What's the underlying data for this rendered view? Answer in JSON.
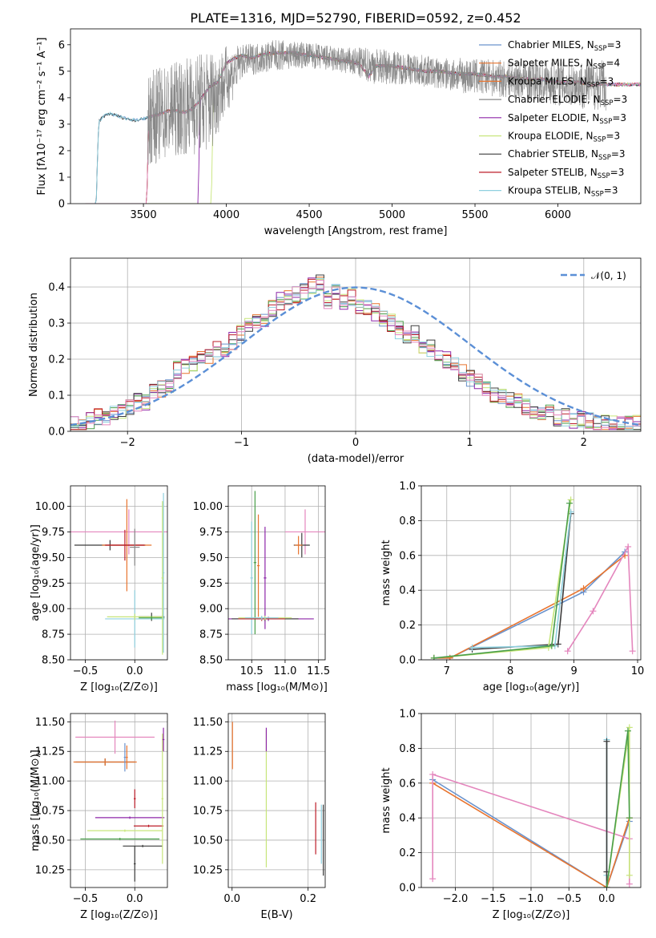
{
  "figure": {
    "title": "PLATE=1316, MJD=52790, FIBERID=0592, z=0.452"
  },
  "model_colors": [
    "#6a92cc",
    "#e8742f",
    "#4a9e4a",
    "#8d27a8",
    "#c7e57a",
    "#3c3c3c",
    "#bd1c28",
    "#8fd0df",
    "#e486bd",
    "#888888"
  ],
  "chart_data": [
    {
      "id": "spectrum",
      "type": "line",
      "title": "PLATE=1316, MJD=52790, FIBERID=0592, z=0.452",
      "xlabel": "wavelength [Angstrom, rest frame]",
      "ylabel": "Flux [fλ10⁻¹⁷ erg cm⁻² s⁻¹ A⁻¹]",
      "xlim": [
        3060,
        6500
      ],
      "ylim": [
        0,
        6.6
      ],
      "xticks": [
        3500,
        4000,
        4500,
        5000,
        5500,
        6000
      ],
      "yticks": [
        0,
        1,
        2,
        3,
        4,
        5,
        6
      ],
      "grid": false,
      "legend_position": "top-right",
      "observed_spectrum": {
        "color": "#888888",
        "x_start": 3525,
        "x_end": 6290,
        "envelope_x": [
          3525,
          3700,
          3900,
          4100,
          4300,
          4500,
          4700,
          4900,
          5100,
          5300,
          5500,
          5700,
          5900,
          6100,
          6290
        ],
        "envelope_y": [
          3.2,
          3.6,
          3.9,
          5.4,
          5.6,
          5.6,
          5.4,
          5.2,
          5.1,
          4.9,
          4.8,
          4.7,
          4.6,
          4.5,
          4.5
        ],
        "noise_amplitude": [
          1.8,
          1.8,
          2.0,
          0.6,
          0.6,
          0.5,
          0.5,
          0.7,
          0.6,
          0.6,
          0.7,
          0.7,
          0.8,
          0.9,
          1.0
        ]
      },
      "model_spectrum": {
        "x": [
          3200,
          3215,
          3230,
          3260,
          3300,
          3350,
          3400,
          3450,
          3500,
          3550,
          3600,
          3650,
          3700,
          3750,
          3800,
          3850,
          3900,
          3950,
          4000,
          4050,
          4100,
          4150,
          4200,
          4300,
          4400,
          4500,
          4600,
          4700,
          4800,
          4860,
          4900,
          5000,
          5100,
          5200,
          5300,
          5400,
          5500,
          5600,
          5700,
          5800,
          5900,
          6000,
          6100,
          6200,
          6300
        ],
        "y": [
          0,
          0,
          3.1,
          3.3,
          3.4,
          3.3,
          3.2,
          3.15,
          3.2,
          3.3,
          3.4,
          3.5,
          3.5,
          3.45,
          3.6,
          4.0,
          4.4,
          4.6,
          5.3,
          5.5,
          5.6,
          5.5,
          5.6,
          5.7,
          5.7,
          5.6,
          5.5,
          5.4,
          5.3,
          4.8,
          5.2,
          5.2,
          5.1,
          5.0,
          5.0,
          4.9,
          4.9,
          4.8,
          4.8,
          4.7,
          4.7,
          4.6,
          4.6,
          4.5,
          4.5
        ]
      },
      "model_start_wavelengths": [
        3200,
        3520,
        3520,
        3830,
        3910,
        3200,
        3520,
        3200,
        3520,
        3200
      ],
      "legend": [
        {
          "label": "Chabrier MILES, N",
          "sub": "SSP",
          "suffix": "=3",
          "color": "#6a92cc"
        },
        {
          "label": "Salpeter MILES, N",
          "sub": "SSP",
          "suffix": "=4",
          "color": "#e8742f"
        },
        {
          "label": "Kroupa MILES, N",
          "sub": "SSP",
          "suffix": "=3",
          "color": "#e8742f"
        },
        {
          "label": "Chabrier ELODIE, N",
          "sub": "SSP",
          "suffix": "=3",
          "color": "#888888"
        },
        {
          "label": "Salpeter ELODIE, N",
          "sub": "SSP",
          "suffix": "=3",
          "color": "#8d27a8"
        },
        {
          "label": "Kroupa ELODIE, N",
          "sub": "SSP",
          "suffix": "=3",
          "color": "#c7e57a"
        },
        {
          "label": "Chabrier STELIB, N",
          "sub": "SSP",
          "suffix": "=3",
          "color": "#3c3c3c"
        },
        {
          "label": "Salpeter STELIB, N",
          "sub": "SSP",
          "suffix": "=3",
          "color": "#bd1c28"
        },
        {
          "label": "Kroupa STELIB, N",
          "sub": "SSP",
          "suffix": "=3",
          "color": "#8fd0df"
        }
      ]
    },
    {
      "id": "residuals",
      "type": "line",
      "xlabel": "(data-model)/error",
      "ylabel": "Normed distribution",
      "xlim": [
        -2.5,
        2.5
      ],
      "ylim": [
        0,
        0.48
      ],
      "xticks": [
        -2,
        -1,
        0,
        1,
        2
      ],
      "yticks": [
        0.0,
        0.1,
        0.2,
        0.3,
        0.4
      ],
      "grid": true,
      "legend_position": "top-right",
      "gaussian_label": "𝒩(0, 1)",
      "gaussian_color": "#5b8fd6",
      "bin_width": 0.1,
      "bin_start": -2.5,
      "histogram": [
        0.02,
        0.02,
        0.03,
        0.04,
        0.04,
        0.05,
        0.06,
        0.07,
        0.08,
        0.08,
        0.11,
        0.12,
        0.13,
        0.17,
        0.18,
        0.19,
        0.2,
        0.21,
        0.23,
        0.22,
        0.25,
        0.27,
        0.29,
        0.31,
        0.31,
        0.34,
        0.36,
        0.37,
        0.38,
        0.39,
        0.4,
        0.41,
        0.36,
        0.39,
        0.36,
        0.37,
        0.35,
        0.34,
        0.33,
        0.31,
        0.3,
        0.28,
        0.27,
        0.27,
        0.24,
        0.23,
        0.21,
        0.2,
        0.18,
        0.16,
        0.15,
        0.14,
        0.12,
        0.1,
        0.1,
        0.09,
        0.08,
        0.07,
        0.06,
        0.05,
        0.05,
        0.04,
        0.04,
        0.03,
        0.03,
        0.03,
        0.02,
        0.02,
        0.02,
        0.02,
        0.02,
        0.02
      ]
    },
    {
      "id": "age-vs-metallicity",
      "type": "scatter",
      "xlabel": "Z [log₁₀(Z/Z⊙)]",
      "ylabel": "age  [log₁₀(age/yr)]",
      "xlim": [
        -0.65,
        0.33
      ],
      "ylim": [
        8.5,
        10.2
      ],
      "xticks": [
        -0.5,
        0.0
      ],
      "yticks": [
        8.5,
        8.75,
        9.0,
        9.25,
        9.5,
        9.75,
        10.0
      ],
      "grid": true,
      "errorbars": [
        {
          "x": -0.06,
          "y": 9.75,
          "xerr": 0.6,
          "yerr": 0.22,
          "color": "#e486bd"
        },
        {
          "x": -0.25,
          "y": 9.62,
          "xerr": 0.36,
          "yerr": 0.05,
          "color": "#3c3c3c"
        },
        {
          "x": -0.08,
          "y": 9.62,
          "xerr": 0.25,
          "yerr": 0.45,
          "color": "#e8742f"
        },
        {
          "x": -0.1,
          "y": 9.62,
          "xerr": 0.2,
          "yerr": 0.15,
          "color": "#bd1c28"
        },
        {
          "x": 0.0,
          "y": 9.6,
          "xerr": 0.05,
          "yerr": 0.18,
          "color": "#888888"
        },
        {
          "x": 0.0,
          "y": 8.9,
          "xerr": 0.3,
          "yerr": 0.28,
          "color": "#8fd0df"
        },
        {
          "x": 0.17,
          "y": 8.92,
          "xerr": 0.13,
          "yerr": 0.04,
          "color": "#3c3c3c"
        },
        {
          "x": 0.0,
          "y": 8.92,
          "xerr": 0.28,
          "yerr": 0.03,
          "color": "#c7e57a"
        },
        {
          "x": 0.17,
          "y": 8.91,
          "xerr": 0.13,
          "yerr": 0.02,
          "color": "#4a9e4a"
        },
        {
          "x": 0.29,
          "y": 9.35,
          "xerr": 0.01,
          "yerr": 0.78,
          "color": "#8fd0df"
        },
        {
          "x": 0.28,
          "y": 9.3,
          "xerr": 0.01,
          "yerr": 0.75,
          "color": "#c7e57a"
        }
      ]
    },
    {
      "id": "age-vs-mass",
      "type": "scatter",
      "xlabel": "mass [log₁₀(M/M⊙)]",
      "ylabel": "",
      "xlim": [
        10.15,
        11.6
      ],
      "ylim": [
        8.5,
        10.2
      ],
      "xticks": [
        10.5,
        11.0,
        11.5
      ],
      "yticks": [
        8.5,
        8.75,
        9.0,
        9.25,
        9.5,
        9.75,
        10.0
      ],
      "grid": true,
      "errorbars": [
        {
          "x": 11.3,
          "y": 9.75,
          "xerr": 0.3,
          "yerr": 0.22,
          "color": "#e486bd"
        },
        {
          "x": 11.25,
          "y": 9.62,
          "xerr": 0.12,
          "yerr": 0.12,
          "color": "#3c3c3c"
        },
        {
          "x": 11.2,
          "y": 9.62,
          "xerr": 0.06,
          "yerr": 0.09,
          "color": "#e8742f"
        },
        {
          "x": 10.55,
          "y": 9.45,
          "xerr": 0.02,
          "yerr": 0.7,
          "color": "#4a9e4a"
        },
        {
          "x": 10.6,
          "y": 9.42,
          "xerr": 0.02,
          "yerr": 0.5,
          "color": "#e8742f"
        },
        {
          "x": 10.5,
          "y": 9.3,
          "xerr": 0.02,
          "yerr": 0.55,
          "color": "#8fd0df"
        },
        {
          "x": 10.7,
          "y": 9.3,
          "xerr": 0.02,
          "yerr": 0.5,
          "color": "#8d27a8"
        },
        {
          "x": 10.75,
          "y": 8.9,
          "xerr": 0.68,
          "yerr": 0.02,
          "color": "#8d27a8"
        },
        {
          "x": 10.7,
          "y": 8.9,
          "xerr": 0.5,
          "yerr": 0.02,
          "color": "#3c3c3c"
        },
        {
          "x": 10.65,
          "y": 8.9,
          "xerr": 0.35,
          "yerr": 0.02,
          "color": "#bd1c28"
        },
        {
          "x": 10.7,
          "y": 8.91,
          "xerr": 0.4,
          "yerr": 0.02,
          "color": "#c7e57a"
        },
        {
          "x": 10.65,
          "y": 8.91,
          "xerr": 0.25,
          "yerr": 0.02,
          "color": "#8fd0df"
        }
      ]
    },
    {
      "id": "mass-weight-vs-age",
      "type": "line",
      "xlabel": "age  [log₁₀(age/yr)]",
      "ylabel": "mass weight",
      "xlim": [
        6.6,
        10.05
      ],
      "ylim": [
        0,
        1.0
      ],
      "xticks": [
        7,
        8,
        9,
        10
      ],
      "yticks": [
        0.0,
        0.2,
        0.4,
        0.6,
        0.8,
        1.0
      ],
      "grid": true,
      "series": [
        {
          "color": "#6a92cc",
          "x": [
            6.8,
            7.05,
            9.15,
            9.8
          ],
          "y": [
            0.01,
            0.01,
            0.39,
            0.62
          ]
        },
        {
          "color": "#e8742f",
          "x": [
            6.8,
            7.05,
            9.15,
            9.8
          ],
          "y": [
            0.01,
            0.01,
            0.41,
            0.6
          ]
        },
        {
          "color": "#3c3c3c",
          "x": [
            7.4,
            8.75,
            8.95
          ],
          "y": [
            0.06,
            0.09,
            0.84
          ]
        },
        {
          "color": "#8fd0df",
          "x": [
            7.4,
            8.7,
            8.95
          ],
          "y": [
            0.07,
            0.08,
            0.85
          ]
        },
        {
          "color": "#c7e57a",
          "x": [
            6.8,
            8.6,
            8.95
          ],
          "y": [
            0.01,
            0.07,
            0.92
          ]
        },
        {
          "color": "#4a9e4a",
          "x": [
            6.8,
            8.65,
            8.93
          ],
          "y": [
            0.01,
            0.08,
            0.9
          ]
        },
        {
          "color": "#e486bd",
          "x": [
            8.9,
            9.3,
            9.85,
            9.92
          ],
          "y": [
            0.05,
            0.28,
            0.65,
            0.05
          ]
        }
      ]
    },
    {
      "id": "mass-vs-metallicity",
      "type": "scatter",
      "xlabel": "Z [log₁₀(Z/Z⊙)]",
      "ylabel": "mass [log₁₀(M/M⊙)]",
      "xlim": [
        -0.65,
        0.33
      ],
      "ylim": [
        10.1,
        11.57
      ],
      "xticks": [
        -0.5,
        0.0
      ],
      "yticks": [
        10.25,
        10.5,
        10.75,
        11.0,
        11.25,
        11.5
      ],
      "grid": true,
      "errorbars": [
        {
          "x": -0.2,
          "y": 11.37,
          "xerr": 0.4,
          "yerr": 0.14,
          "color": "#e486bd"
        },
        {
          "x": -0.3,
          "y": 11.16,
          "xerr": 0.3,
          "yerr": 0.03,
          "color": "#3c3c3c"
        },
        {
          "x": -0.3,
          "y": 11.16,
          "xerr": 0.32,
          "yerr": 0.03,
          "color": "#e8742f"
        },
        {
          "x": -0.1,
          "y": 11.2,
          "xerr": 0.01,
          "yerr": 0.12,
          "color": "#6a92cc"
        },
        {
          "x": -0.08,
          "y": 11.2,
          "xerr": 0.01,
          "yerr": 0.1,
          "color": "#e8742f"
        },
        {
          "x": 0.0,
          "y": 10.85,
          "xerr": 0.01,
          "yerr": 0.08,
          "color": "#bd1c28"
        },
        {
          "x": -0.05,
          "y": 10.69,
          "xerr": 0.35,
          "yerr": 0.01,
          "color": "#8d27a8"
        },
        {
          "x": 0.14,
          "y": 10.62,
          "xerr": 0.15,
          "yerr": 0.01,
          "color": "#bd1c28"
        },
        {
          "x": -0.1,
          "y": 10.58,
          "xerr": 0.38,
          "yerr": 0.01,
          "color": "#c7e57a"
        },
        {
          "x": -0.15,
          "y": 10.51,
          "xerr": 0.4,
          "yerr": 0.01,
          "color": "#4a9e4a"
        },
        {
          "x": 0.08,
          "y": 10.45,
          "xerr": 0.2,
          "yerr": 0.01,
          "color": "#3c3c3c"
        },
        {
          "x": 0.0,
          "y": 10.3,
          "xerr": 0.01,
          "yerr": 0.15,
          "color": "#3c3c3c"
        },
        {
          "x": 0.28,
          "y": 10.85,
          "xerr": 0.01,
          "yerr": 0.55,
          "color": "#c7e57a"
        },
        {
          "x": 0.29,
          "y": 11.35,
          "xerr": 0.01,
          "yerr": 0.1,
          "color": "#8d27a8"
        }
      ]
    },
    {
      "id": "mass-vs-extinction",
      "type": "scatter",
      "xlabel": "E(B-V)",
      "ylabel": "",
      "xlim": [
        -0.01,
        0.245
      ],
      "ylim": [
        10.1,
        11.57
      ],
      "xticks": [
        0.0,
        0.2
      ],
      "yticks": [
        10.25,
        10.5,
        10.75,
        11.0,
        11.25,
        11.5
      ],
      "grid": true,
      "errorbars": [
        {
          "x": 0.001,
          "y": 11.3,
          "xerr": 0.0,
          "yerr": 0.2,
          "color": "#e8742f"
        },
        {
          "x": 0.09,
          "y": 10.85,
          "xerr": 0.0,
          "yerr": 0.58,
          "color": "#c7e57a"
        },
        {
          "x": 0.09,
          "y": 11.35,
          "xerr": 0.0,
          "yerr": 0.1,
          "color": "#8d27a8"
        },
        {
          "x": 0.22,
          "y": 10.6,
          "xerr": 0.0,
          "yerr": 0.22,
          "color": "#bd1c28"
        },
        {
          "x": 0.235,
          "y": 10.55,
          "xerr": 0.0,
          "yerr": 0.25,
          "color": "#8fd0df"
        },
        {
          "x": 0.24,
          "y": 10.5,
          "xerr": 0.0,
          "yerr": 0.3,
          "color": "#3c3c3c"
        }
      ]
    },
    {
      "id": "mass-weight-vs-metallicity",
      "type": "line",
      "xlabel": "Z [log₁₀(Z/Z⊙)]",
      "ylabel": "mass weight",
      "xlim": [
        -2.45,
        0.45
      ],
      "ylim": [
        0,
        1.0
      ],
      "xticks": [
        -2.0,
        -1.5,
        -1.0,
        -0.5,
        0.0
      ],
      "yticks": [
        0.0,
        0.2,
        0.4,
        0.6,
        0.8,
        1.0
      ],
      "grid": true,
      "series": [
        {
          "color": "#6a92cc",
          "x": [
            -2.3,
            0.0,
            0.3
          ],
          "y": [
            0.62,
            0.0,
            0.38
          ]
        },
        {
          "color": "#e8742f",
          "x": [
            -2.3,
            0.0,
            0.3
          ],
          "y": [
            0.6,
            0.0,
            0.4
          ]
        },
        {
          "color": "#e486bd",
          "x": [
            -2.3,
            -2.3,
            0.3,
            0.3
          ],
          "y": [
            0.05,
            0.65,
            0.28,
            0.02
          ]
        },
        {
          "color": "#8fd0df",
          "x": [
            0.0,
            0.0,
            0.0
          ],
          "y": [
            0.0,
            0.07,
            0.85
          ]
        },
        {
          "color": "#3c3c3c",
          "x": [
            0.0,
            0.0,
            0.0
          ],
          "y": [
            0.0,
            0.09,
            0.84
          ]
        },
        {
          "color": "#c7e57a",
          "x": [
            0.0,
            0.3,
            0.3
          ],
          "y": [
            0.0,
            0.92,
            0.07
          ]
        },
        {
          "color": "#4a9e4a",
          "x": [
            0.0,
            0.28,
            0.3
          ],
          "y": [
            0.0,
            0.9,
            0.4
          ]
        }
      ]
    }
  ]
}
